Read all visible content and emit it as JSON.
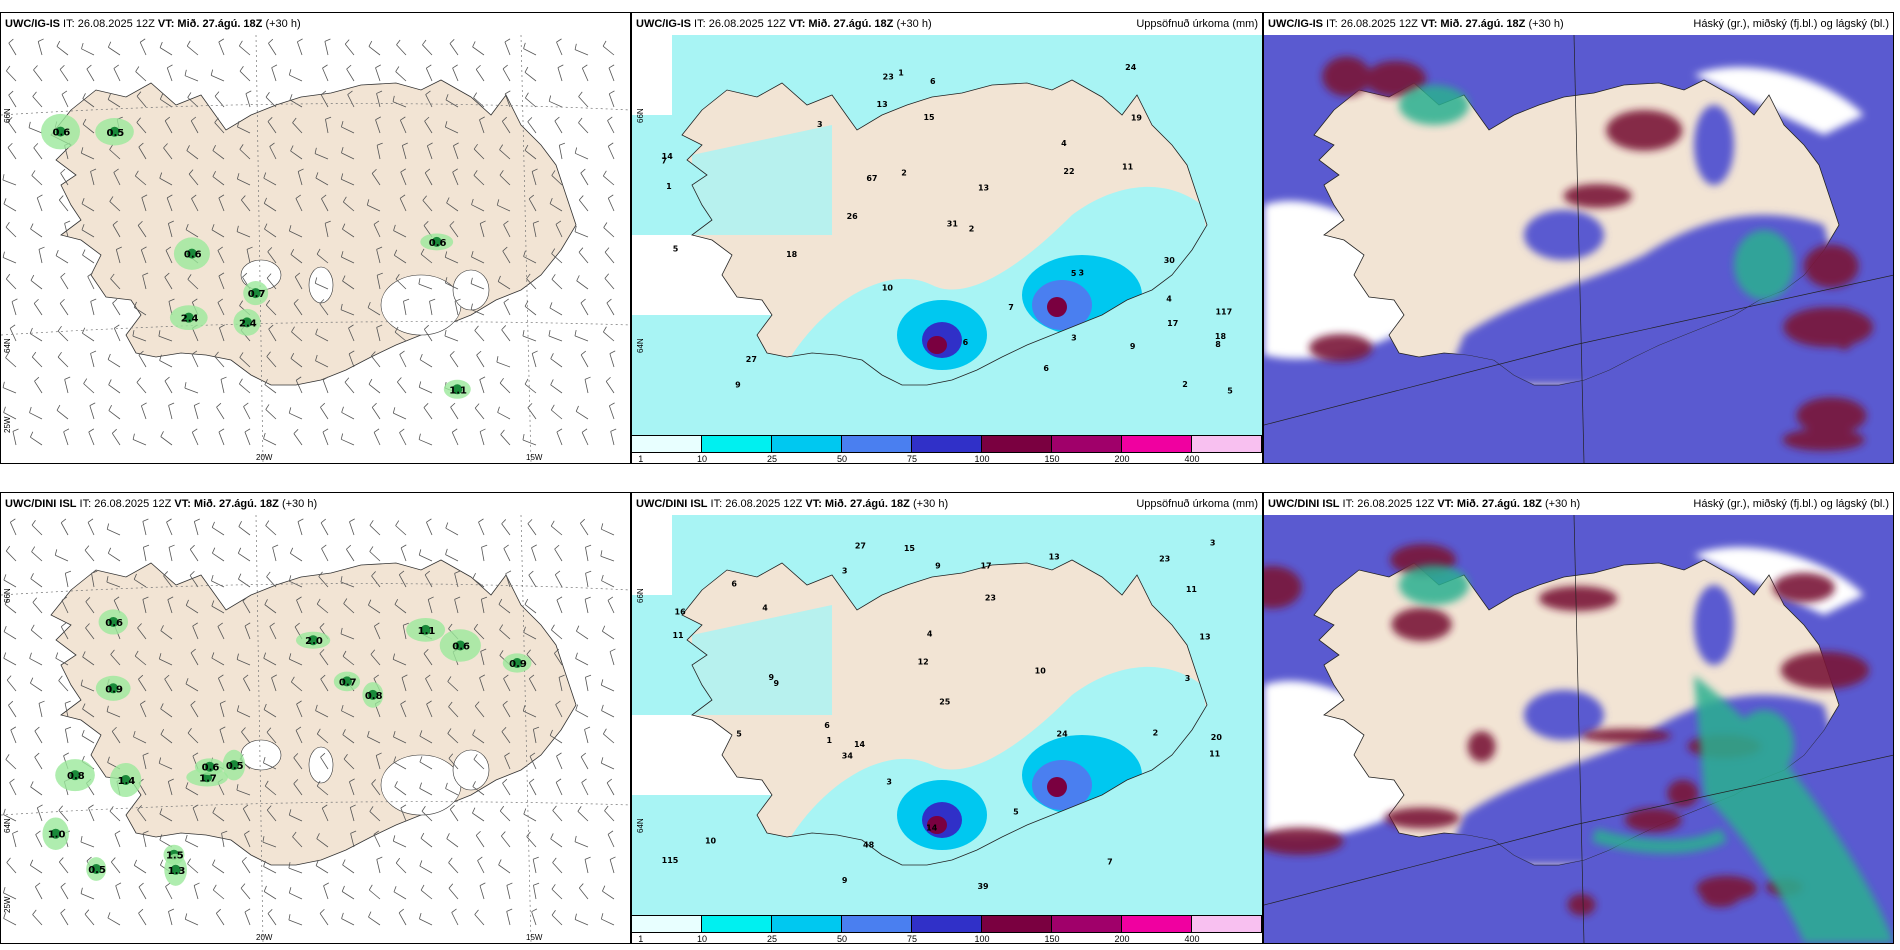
{
  "panels": [
    {
      "model": "UWC/IG-IS",
      "it": "IT: 26.08.2025 12Z",
      "vt_label": "VT:",
      "vt": "Mið. 27.ágú. 18Z",
      "lead": "(+30",
      "lead2": "h)",
      "right": "",
      "type": "fog",
      "values": [
        "0.7",
        "0.5",
        "1.1",
        "2.4",
        "2.4",
        "0.6",
        "0.6",
        "0.6"
      ],
      "lat": [
        "66N",
        "64N",
        "25W"
      ],
      "lon": [
        "20W",
        "15W"
      ]
    },
    {
      "model": "UWC/IG-IS",
      "it": "IT: 26.08.2025 12Z",
      "vt_label": "VT:",
      "vt": "Mið. 27.ágú. 18Z",
      "lead": "(+30 h)",
      "right": "Uppsöfnuð úrkoma (mm)",
      "type": "precip",
      "values": [
        "3",
        "2",
        "1",
        "4",
        "3",
        "2",
        "6",
        "5",
        "7",
        "10",
        "14",
        "13",
        "18",
        "9",
        "3",
        "6",
        "4",
        "2",
        "1",
        "5",
        "7",
        "8",
        "15",
        "24",
        "31",
        "26",
        "27",
        "67",
        "117",
        "13",
        "17",
        "22",
        "19",
        "23",
        "30",
        "11",
        "18",
        "9",
        "6",
        "5"
      ],
      "lat": [
        "66N",
        "64N"
      ],
      "lon": []
    },
    {
      "model": "UWC/IG-IS",
      "it": "IT: 26.08.2025 12Z",
      "vt_label": "VT:",
      "vt": "Mið. 27.ágú. 18Z",
      "lead": "(+30 h)",
      "right": "Háský (gr.), miðský (fj.bl.) og lágský (bl.)",
      "type": "cloud",
      "values": [],
      "lat": [],
      "lon": []
    },
    {
      "model": "UWC/DINI ISL",
      "it": "IT: 26.08.2025 12Z",
      "vt_label": "VT:",
      "vt": "Mið. 27.ágú. 18Z",
      "lead": "(+30 h)",
      "right": "",
      "type": "fog",
      "values": [
        "2.0",
        "0.9",
        "1.5",
        "0.6",
        "0.7",
        "1.3",
        "1.0",
        "1.1",
        "0.8",
        "0.6",
        "0.9",
        "1.4",
        "1.7",
        "0.6",
        "0.5",
        "0.5",
        "0.8"
      ],
      "lat": [
        "66N",
        "64N",
        "25W"
      ],
      "lon": [
        "20W",
        "15W"
      ]
    },
    {
      "model": "UWC/DINI ISL",
      "it": "IT: 26.08.2025 12Z",
      "vt_label": "VT:",
      "vt": "Mið. 27.ágú. 18Z",
      "lead": "(+30 h)",
      "right": "Uppsöfnuð úrkoma (mm)",
      "type": "precip",
      "values": [
        "3",
        "1",
        "2",
        "4",
        "5",
        "6",
        "9",
        "10",
        "13",
        "3",
        "14",
        "6",
        "11",
        "5",
        "9",
        "10",
        "23",
        "25",
        "27",
        "39",
        "34",
        "48",
        "115",
        "16",
        "11",
        "23",
        "20",
        "24",
        "17",
        "15",
        "13",
        "9",
        "7",
        "3",
        "4",
        "14",
        "3",
        "9",
        "12",
        "11"
      ],
      "lat": [
        "66N",
        "64N"
      ],
      "lon": []
    },
    {
      "model": "UWC/DINI ISL",
      "it": "IT: 26.08.2025 12Z",
      "vt_label": "VT:",
      "vt": "Mið. 27.ágú. 18Z",
      "lead": "(+30 h)",
      "right": "Háský (gr.), miðský (fj.bl.) og lágský (bl.)",
      "type": "cloud",
      "values": [],
      "lat": [],
      "lon": []
    }
  ],
  "colorbar": {
    "labels": [
      "1",
      "10",
      "25",
      "50",
      "75",
      "100",
      "150",
      "200",
      "400"
    ],
    "colors": [
      "#e8ffff",
      "#00f0f0",
      "#00c8f0",
      "#4a7ff0",
      "#3030c8",
      "#7a0040",
      "#a0006a",
      "#f000a0",
      "#f8c0f0"
    ]
  },
  "colors": {
    "land": "#f2e4d4",
    "precip_light": "#a8f4f4",
    "cloud_low": "#5a5ad0",
    "cloud_mid": "#7a1838",
    "cloud_high": "#2ab090",
    "fog": "#1a8a3a"
  }
}
